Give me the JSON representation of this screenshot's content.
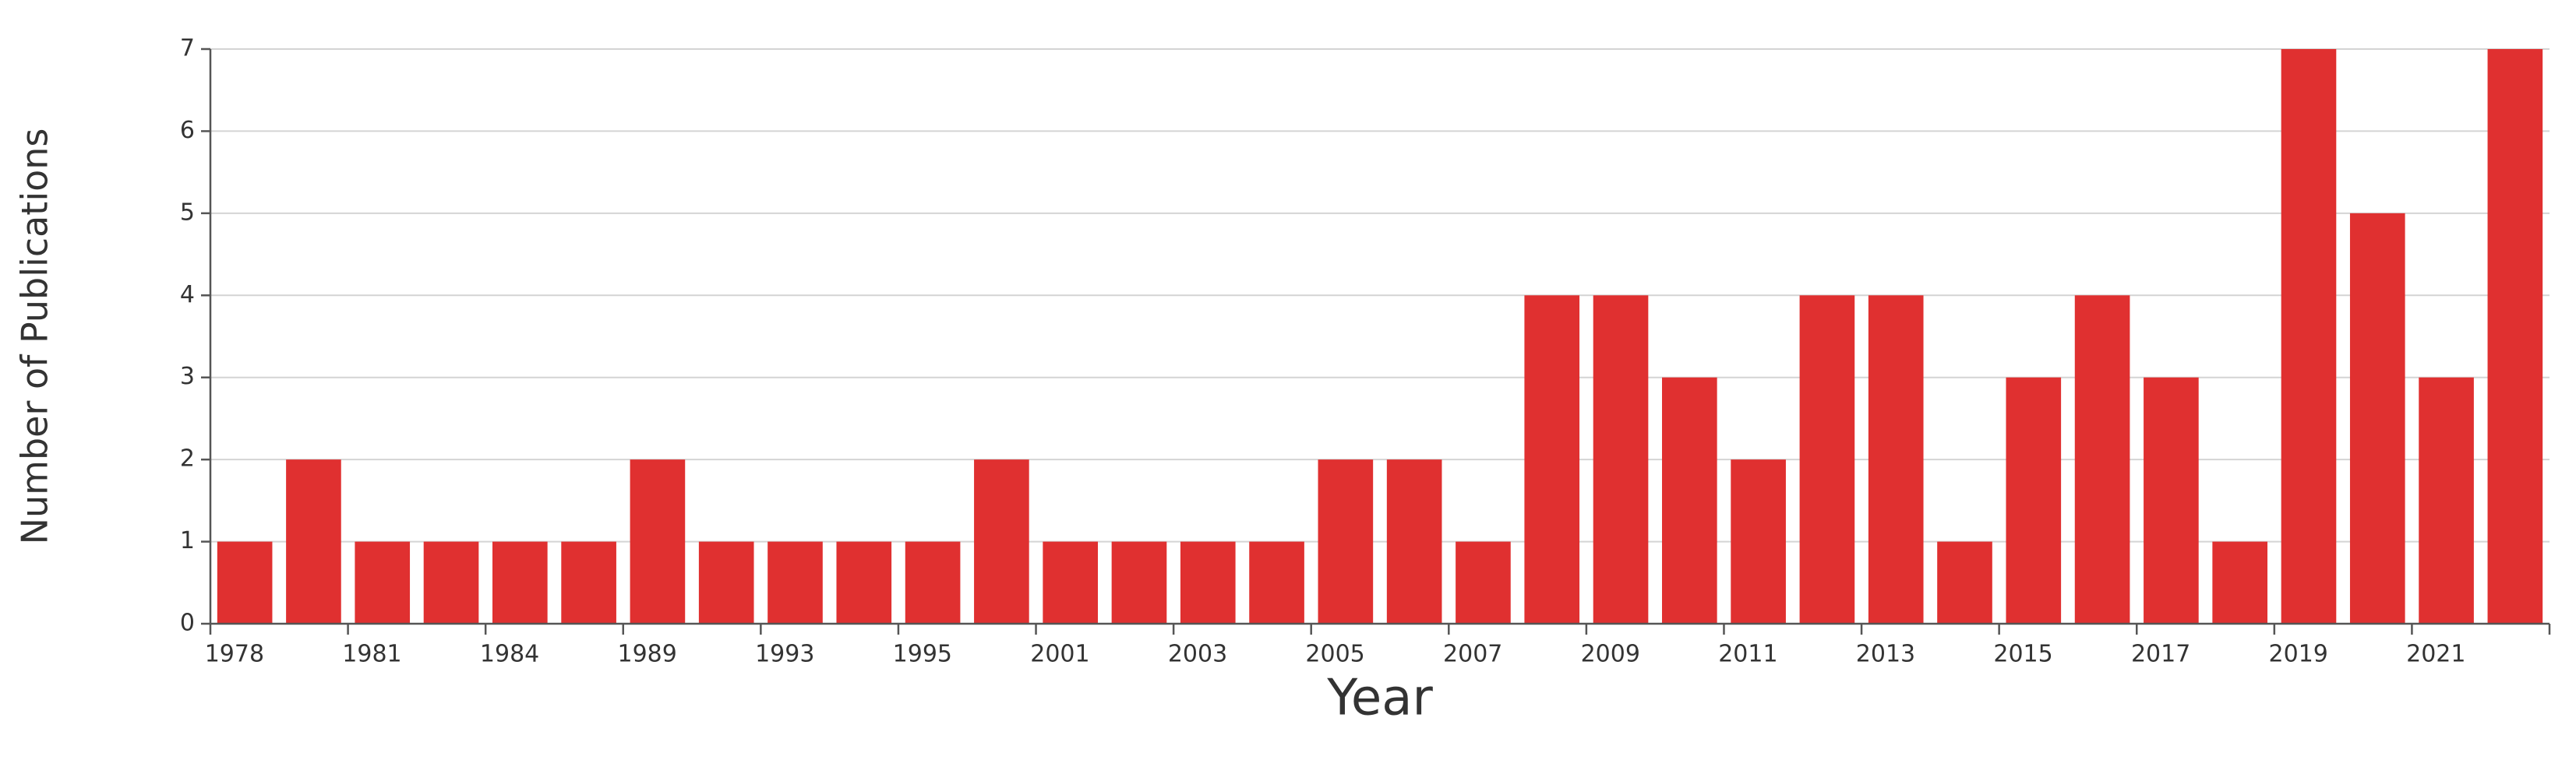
{
  "chart_data": {
    "type": "bar",
    "xlabel": "Year",
    "ylabel": "Number of Publications",
    "categories": [
      "1978",
      null,
      "1981",
      null,
      "1984",
      null,
      "1989",
      null,
      "1993",
      null,
      "1995",
      null,
      "2001",
      null,
      "2003",
      null,
      "2005",
      null,
      "2007",
      null,
      "2009",
      null,
      "2011",
      null,
      "2013",
      null,
      "2015",
      null,
      "2017",
      null,
      "2019",
      null,
      "2021",
      null
    ],
    "values": [
      1,
      2,
      1,
      1,
      1,
      1,
      2,
      1,
      1,
      1,
      1,
      2,
      1,
      1,
      1,
      1,
      2,
      2,
      1,
      4,
      4,
      3,
      2,
      4,
      4,
      1,
      3,
      4,
      3,
      1,
      7,
      5,
      3,
      7
    ],
    "color": "#e03030",
    "ylim": [
      0,
      7
    ],
    "yticks": [
      0,
      1,
      2,
      3,
      4,
      5,
      6,
      7
    ],
    "grid": true
  }
}
